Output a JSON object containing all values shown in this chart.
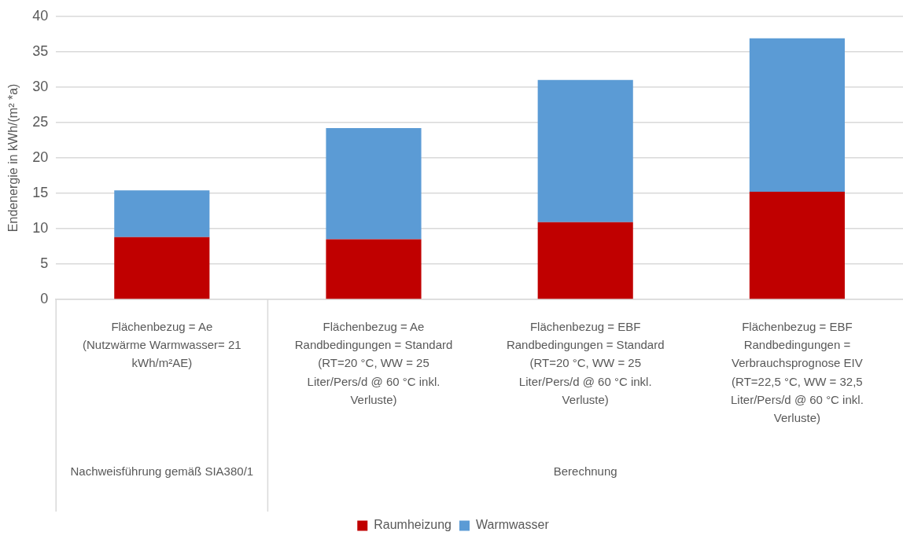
{
  "chart_data": {
    "type": "bar",
    "stacked": true,
    "ylabel": "Endenergie in kWh/(m² *a)",
    "categories": [
      "Flächenbezug = Ae\n(Nutzwärme Warmwasser= 21 kWh/m²AE)",
      "Flächenbezug = Ae\nRandbedingungen = Standard\n(RT=20 °C, WW = 25 Liter/Pers/d @ 60 °C inkl. Verluste)",
      "Flächenbezug = EBF\nRandbedingungen = Standard\n(RT=20 °C, WW = 25 Liter/Pers/d @ 60 °C inkl. Verluste)",
      "Flächenbezug = EBF\nRandbedingungen = Verbrauchsprognose EIV\n(RT=22,5 °C, WW = 32,5 Liter/Pers/d @ 60 °C inkl. Verluste)"
    ],
    "series": [
      {
        "name": "Raumheizung",
        "color": "#c00000",
        "values": [
          8.8,
          8.5,
          10.9,
          15.2
        ]
      },
      {
        "name": "Warmwasser",
        "color": "#5b9bd5",
        "values": [
          6.6,
          15.7,
          20.1,
          21.7
        ]
      }
    ],
    "ylim": [
      0,
      40
    ],
    "yticks": [
      0,
      5,
      10,
      15,
      20,
      25,
      30,
      35,
      40
    ],
    "grid": "y",
    "legend": "bottom",
    "annotations": [
      "Nachweisführung gemäß SIA380/1",
      "Berechnung"
    ]
  }
}
